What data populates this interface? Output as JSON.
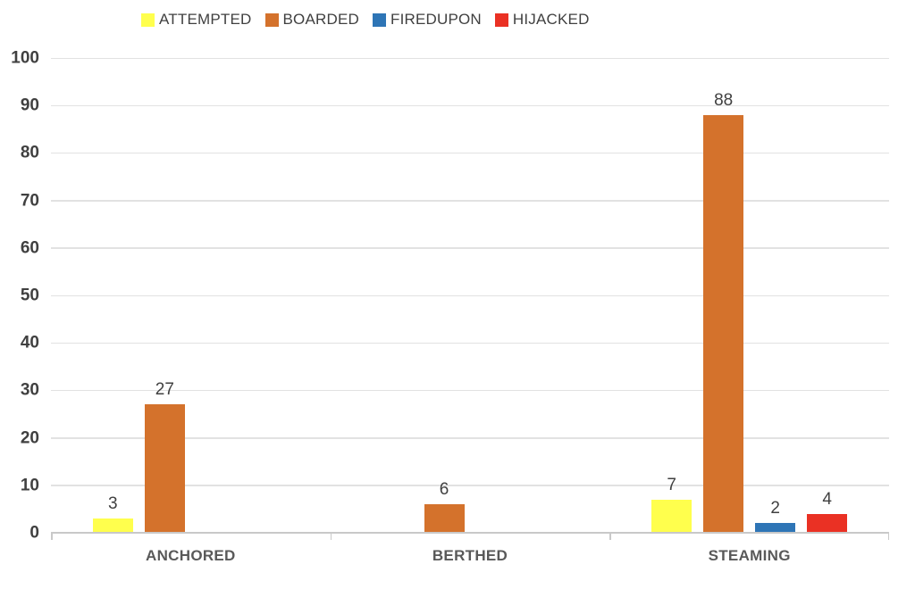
{
  "chart_data": {
    "type": "bar",
    "title": "",
    "xlabel": "",
    "ylabel": "",
    "categories": [
      "ANCHORED",
      "BERTHED",
      "STEAMING"
    ],
    "series": [
      {
        "name": "ATTEMPTED",
        "color": "#FFFF4D",
        "values": [
          3,
          0,
          7
        ]
      },
      {
        "name": "BOARDED",
        "color": "#D4722C",
        "values": [
          27,
          6,
          88
        ]
      },
      {
        "name": "FIREDUPON",
        "color": "#2E75B6",
        "values": [
          0,
          0,
          2
        ]
      },
      {
        "name": "HIJACKED",
        "color": "#EA3124",
        "values": [
          0,
          0,
          4
        ]
      }
    ],
    "ylim": [
      0,
      100
    ],
    "yticks": [
      0,
      10,
      20,
      30,
      40,
      50,
      60,
      70,
      80,
      90,
      100
    ],
    "grid": true,
    "legend_position": "top",
    "data_labels_shown": true,
    "colors": {
      "background": "#FFFFFF",
      "grid_line": "#E2E2E2",
      "axis_line": "#C9C9C9",
      "data_label_text": "#404040",
      "y_axis_text": "#404040",
      "category_text": "#595959",
      "legend_text": "#404040"
    }
  }
}
